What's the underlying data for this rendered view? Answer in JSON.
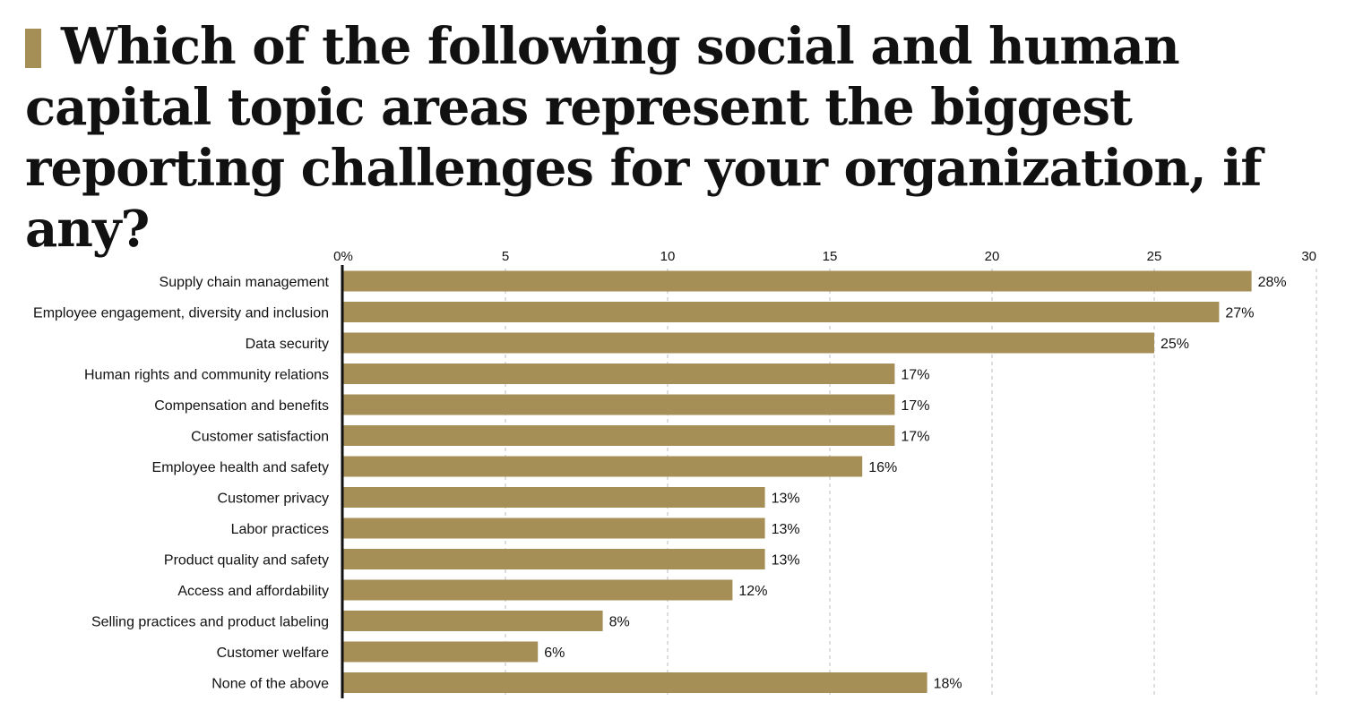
{
  "chart_data": {
    "type": "bar",
    "orientation": "horizontal",
    "title": "Which of the following social and human capital topic areas represent the biggest reporting challenges for your organization, if any?",
    "categories": [
      "Supply chain management",
      "Employee engagement, diversity and inclusion",
      "Data security",
      "Human rights and community relations",
      "Compensation and benefits",
      "Customer satisfaction",
      "Employee health and safety",
      "Customer privacy",
      "Labor practices",
      "Product quality and safety",
      "Access and affordability",
      "Selling practices and product labeling",
      "Customer welfare",
      "None of the above"
    ],
    "values": [
      28,
      27,
      25,
      17,
      17,
      17,
      16,
      13,
      13,
      13,
      12,
      8,
      6,
      18
    ],
    "value_labels": [
      "28%",
      "27%",
      "25%",
      "17%",
      "17%",
      "17%",
      "16%",
      "13%",
      "13%",
      "13%",
      "12%",
      "8%",
      "6%",
      "18%"
    ],
    "xlim": [
      0,
      30
    ],
    "x_ticks": [
      0,
      5,
      10,
      15,
      20,
      25,
      30
    ],
    "x_tick_labels": [
      "0%",
      "5",
      "10",
      "15",
      "20",
      "25",
      "30"
    ],
    "xlabel": "",
    "ylabel": "",
    "grid": true,
    "legend": "none",
    "bar_color": "#a58f57",
    "grid_color": "#bdbdbd",
    "axis_color": "#111111"
  }
}
